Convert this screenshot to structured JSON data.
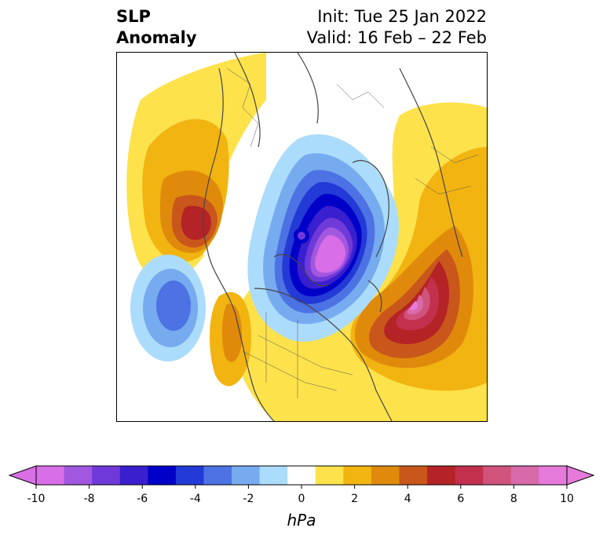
{
  "title": {
    "left_line1": "SLP",
    "left_line2": "Anomaly",
    "right_line1": "Init: Tue 25 Jan 2022",
    "right_line2": "Valid: 16 Feb – 22 Feb"
  },
  "colorbar": {
    "unit": "hPa",
    "ticks": [
      "-10",
      "-8",
      "-6",
      "-4",
      "-2",
      "0",
      "2",
      "4",
      "6",
      "8",
      "10"
    ],
    "levels": [
      -10,
      -9,
      -8,
      -7,
      -6,
      -5,
      -4,
      -3,
      -2,
      -1,
      1,
      2,
      3,
      4,
      5,
      6,
      7,
      8,
      9,
      10
    ],
    "colors": [
      "#d86fe6",
      "#a257e0",
      "#6f3ad9",
      "#3a1fcf",
      "#0000c8",
      "#233ad6",
      "#4d72e3",
      "#77abf0",
      "#acdcfb",
      "#ffffff",
      "#fde24b",
      "#f2b410",
      "#e08a0c",
      "#c9571b",
      "#b42325",
      "#c2304d",
      "#d0537c",
      "#d96aaa",
      "#e67adb"
    ],
    "under_color": "#d86fe6",
    "over_color": "#e67adb"
  },
  "map": {
    "name": "North Polar Stereographic SLP anomaly",
    "colors": {
      "land_outline": "#444444",
      "background": "#ffffff"
    }
  }
}
